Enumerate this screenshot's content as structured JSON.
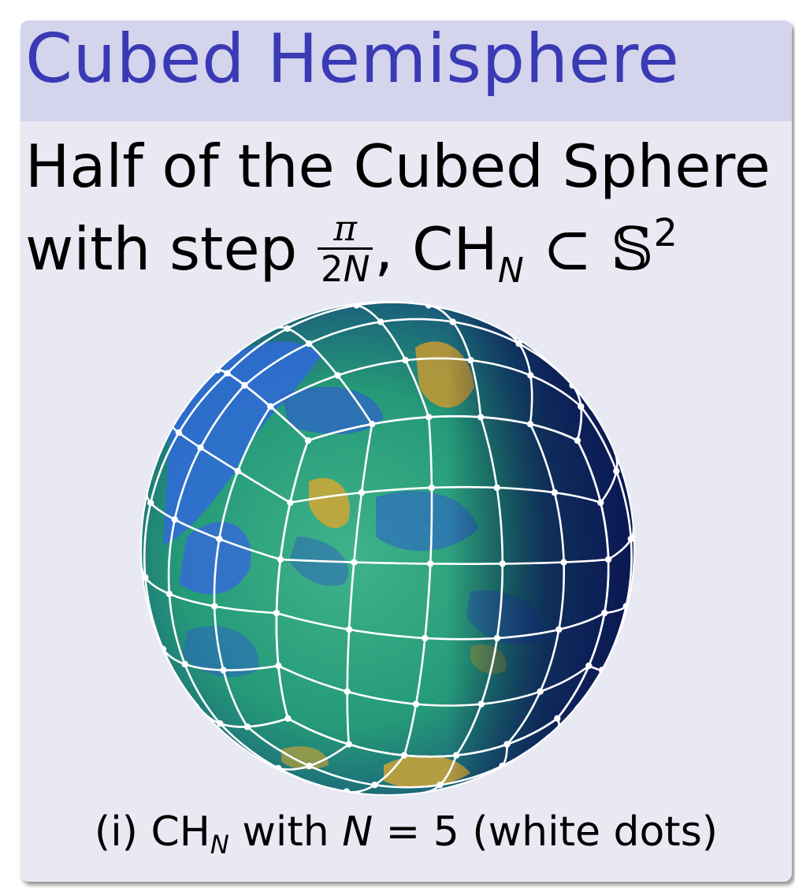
{
  "title": "Cubed Hemisphere",
  "line1": "Half of the Cubed Sphere",
  "line2": {
    "prefix": "with step",
    "frac_num": "π",
    "frac_den": "2N",
    "comma": ",",
    "ch": "CH",
    "ch_sub": "N",
    "subset": "⊂",
    "sphere_symbol": "𝕊",
    "sphere_sup": "2"
  },
  "caption": {
    "prefix": "(i) CH",
    "sub": "N",
    "middle": " with ",
    "var": "N",
    "rest": " = 5 (white dots)"
  },
  "colors": {
    "title": "#3a3ab5",
    "title_bar": "#d4d4ed",
    "background": "#e9e9f4",
    "grid": "#ffffff"
  }
}
